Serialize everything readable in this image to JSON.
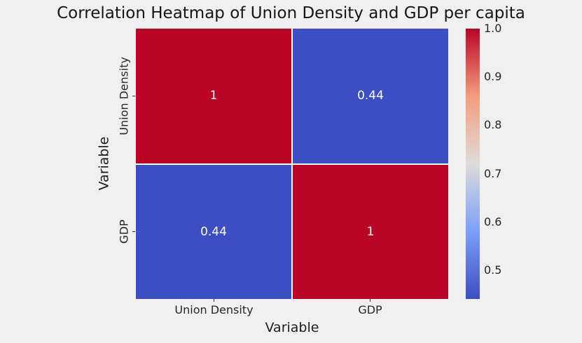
{
  "figure": {
    "background_color": "#f0f0f0"
  },
  "chart_data": {
    "type": "heatmap",
    "title": "Correlation Heatmap of Union Density and GDP per capita",
    "xlabel": "Variable",
    "ylabel": "Variable",
    "x_categories": [
      "Union Density",
      "GDP"
    ],
    "y_categories": [
      "Union Density",
      "GDP"
    ],
    "matrix": [
      [
        1,
        0.44
      ],
      [
        0.44,
        1
      ]
    ],
    "cell_labels": [
      [
        "1",
        "0.44"
      ],
      [
        "0.44",
        "1"
      ]
    ],
    "cell_colors": [
      [
        "#ba0526",
        "#3c4ec3"
      ],
      [
        "#3c4ec3",
        "#ba0526"
      ]
    ],
    "colormap": "coolwarm",
    "vmin": 0.44,
    "vmax": 1.0,
    "colorbar_ticks": [
      "1.0",
      "0.9",
      "0.8",
      "0.7",
      "0.6",
      "0.5"
    ],
    "colorbar_gradient_bottom_to_top": [
      "#3c4ec3",
      "#7c9ff9",
      "#dedcda",
      "#f59c7d",
      "#ba0526"
    ],
    "annotation_text_color": "#ffffff",
    "legend_position": "right",
    "grid": false
  }
}
